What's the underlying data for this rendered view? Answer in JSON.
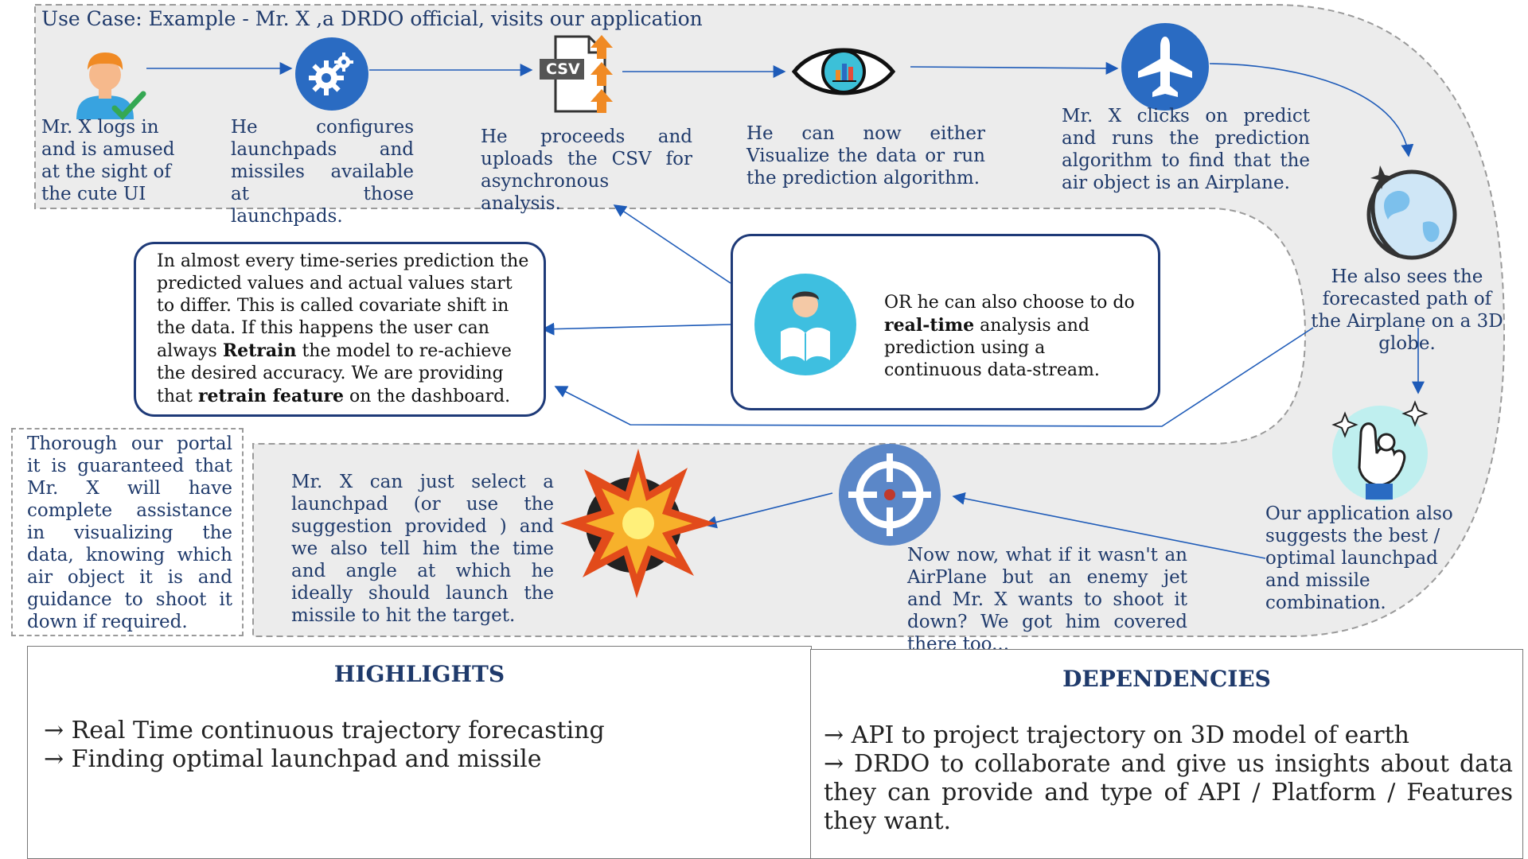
{
  "header": {
    "title": "Use Case: Example - Mr. X ,a DRDO official, visits our application"
  },
  "steps": [
    {
      "id": "login",
      "icon": "user-check-icon",
      "text": "Mr. X logs in and is amused at the sight of the cute UI"
    },
    {
      "id": "configure",
      "icon": "gear-icon",
      "text": "He configures launchpads and missiles available at those launchpads."
    },
    {
      "id": "upload",
      "icon": "csv-upload-icon",
      "icon_label": "CSV",
      "text": "He proceeds and uploads the CSV for asynchronous analysis."
    },
    {
      "id": "visualize",
      "icon": "eye-chart-icon",
      "text": "He can now either Visualize the data or run the prediction algorithm."
    },
    {
      "id": "predict",
      "icon": "airplane-icon",
      "text": "Mr. X clicks on predict and runs the prediction algorithm to find that the air object is an Airplane."
    },
    {
      "id": "globe",
      "icon": "globe-plane-icon",
      "text": "He also sees the forecasted path of the Airplane on a 3D globe."
    },
    {
      "id": "suggest",
      "icon": "ok-hand-icon",
      "text": "Our application also suggests the best / optimal launchpad and missile combination."
    },
    {
      "id": "target",
      "icon": "crosshair-icon",
      "text": "Now now, what if it wasn't an AirPlane but an enemy jet and Mr. X wants to shoot it down? We got him covered there too..."
    },
    {
      "id": "launch",
      "icon": "explosion-icon",
      "text": "Mr. X can just select a launchpad (or use the suggestion provided ) and we also tell him the time and angle at which he ideally should launch the missile to hit the target."
    }
  ],
  "realtime_box": {
    "icon": "reader-icon",
    "text_pre": "OR he can also choose to do ",
    "text_bold": "real-time",
    "text_post": " analysis and prediction using a continuous data-stream."
  },
  "retrain_box": {
    "text_1": "In almost every time-series prediction the predicted values and actual values start to differ. This is called covariate shift in the data. If this happens the user can always ",
    "bold_1": "Retrain",
    "text_2": " the model to re-achieve the desired accuracy. We are providing that ",
    "bold_2": "retrain feature",
    "text_3": " on the dashboard."
  },
  "side_note": {
    "text": "Thorough our portal it is guaranteed that Mr. X will have complete assistance in visualizing the data, knowing which air object it is and guidance to shoot it down if required."
  },
  "highlights": {
    "title": "HIGHLIGHTS",
    "items": [
      "→ Real Time continuous trajectory forecasting",
      "→ Finding optimal launchpad and missile"
    ]
  },
  "dependencies": {
    "title": "DEPENDENCIES",
    "items": [
      "→ API to project trajectory on 3D model of earth",
      "→ DRDO to collaborate and give us insights about data they can provide and type of API / Platform / Features they want."
    ]
  },
  "colors": {
    "accent": "#1e5bb8",
    "text": "#1f3a6b",
    "border": "#1e3a78",
    "path_fill": "#ececec",
    "icon_blue": "#2a6bc2"
  }
}
